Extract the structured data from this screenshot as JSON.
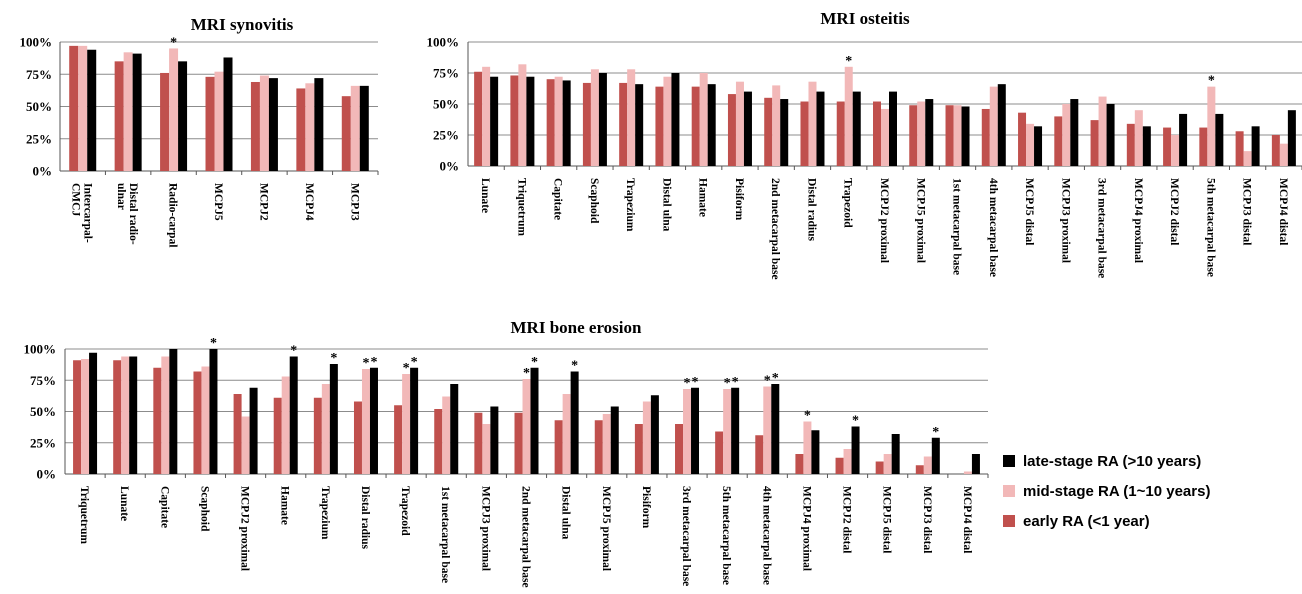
{
  "colors": {
    "early": "#c0504d",
    "mid": "#f2b8b8",
    "late": "#000000"
  },
  "legend": [
    {
      "key": "late",
      "label": "late-stage RA (>10 years)"
    },
    {
      "key": "mid",
      "label": "mid-stage RA (1~10 years)"
    },
    {
      "key": "early",
      "label": "early RA (<1 year)"
    }
  ],
  "chart_data": [
    {
      "type": "bar",
      "title": "MRI synovitis",
      "ylim": [
        0,
        100
      ],
      "yticks": [
        "0%",
        "25%",
        "50%",
        "75%",
        "100%"
      ],
      "grid": true,
      "categories": [
        "Intercarpal-CMCJ",
        "Distal radio-ulnar",
        "Radio-carpal",
        "MCPJ5",
        "MCPJ2",
        "MCPJ4",
        "MCPJ3"
      ],
      "category_lines": [
        [
          "Intercarpal-",
          "CMCJ"
        ],
        [
          "Distal radio-",
          "ulnar"
        ],
        [
          "Radio-carpal"
        ],
        [
          "MCPJ5"
        ],
        [
          "MCPJ2"
        ],
        [
          "MCPJ4"
        ],
        [
          "MCPJ3"
        ]
      ],
      "series": [
        {
          "key": "early",
          "values": [
            97,
            85,
            76,
            73,
            69,
            64,
            58
          ]
        },
        {
          "key": "mid",
          "values": [
            97,
            92,
            95,
            77,
            74,
            68,
            66
          ]
        },
        {
          "key": "late",
          "values": [
            94,
            91,
            85,
            88,
            72,
            72,
            66
          ]
        }
      ],
      "annotations": [
        {
          "index": 2,
          "series": "mid",
          "text": "*"
        }
      ]
    },
    {
      "type": "bar",
      "title": "MRI osteitis",
      "ylim": [
        0,
        100
      ],
      "yticks": [
        "0%",
        "25%",
        "50%",
        "75%",
        "100%"
      ],
      "grid": true,
      "categories": [
        "Lunate",
        "Triquetrum",
        "Capitate",
        "Scaphoid",
        "Trapezium",
        "Distal ulna",
        "Hamate",
        "Pisiform",
        "2nd metacarpal base",
        "Distal radius",
        "Trapezoid",
        "MCPJ2 proximal",
        "MCPJ5 proximal",
        "1st metacarpal base",
        "4th metacarpal base",
        "MCPJ5 distal",
        "MCPJ3 proximal",
        "3rd metacarpal base",
        "MCPJ4 proximal",
        "MCPJ2 distal",
        "5th metacarpal base",
        "MCPJ3 distal",
        "MCPJ4 distal"
      ],
      "series": [
        {
          "key": "early",
          "values": [
            76,
            73,
            70,
            67,
            67,
            64,
            64,
            58,
            55,
            52,
            52,
            52,
            49,
            49,
            46,
            43,
            40,
            37,
            34,
            31,
            31,
            28,
            25
          ]
        },
        {
          "key": "mid",
          "values": [
            80,
            82,
            72,
            78,
            78,
            72,
            75,
            68,
            65,
            68,
            80,
            46,
            52,
            49,
            64,
            34,
            50,
            56,
            45,
            25,
            64,
            12,
            18
          ]
        },
        {
          "key": "late",
          "values": [
            72,
            72,
            69,
            75,
            66,
            75,
            66,
            60,
            54,
            60,
            60,
            60,
            54,
            48,
            66,
            32,
            54,
            50,
            32,
            42,
            42,
            32,
            45
          ]
        }
      ],
      "annotations": [
        {
          "index": 10,
          "series": "mid",
          "text": "*"
        },
        {
          "index": 20,
          "series": "mid",
          "text": "*"
        }
      ]
    },
    {
      "type": "bar",
      "title": "MRI bone erosion",
      "ylim": [
        0,
        100
      ],
      "yticks": [
        "0%",
        "25%",
        "50%",
        "75%",
        "100%"
      ],
      "grid": true,
      "categories": [
        "Triquetrum",
        "Lunate",
        "Capitate",
        "Scaphoid",
        "MCPJ2 proximal",
        "Hamate",
        "Trapezium",
        "Distal radius",
        "Trapezoid",
        "1st metacarpal base",
        "MCPJ3 proximal",
        "2nd metacarpal base",
        "Distal ulna",
        "MCPJ5 proximal",
        "Pisiform",
        "3rd metacarpal base",
        "5th metacarpal base",
        "4th metacarpal base",
        "MCPJ4 proximal",
        "MCPJ2 distal",
        "MCPJ5 distal",
        "MCPJ3 distal",
        "MCPJ4 distal"
      ],
      "series": [
        {
          "key": "early",
          "values": [
            91,
            91,
            85,
            82,
            64,
            61,
            61,
            58,
            55,
            52,
            49,
            49,
            43,
            43,
            40,
            40,
            34,
            31,
            16,
            13,
            10,
            7,
            0
          ]
        },
        {
          "key": "mid",
          "values": [
            92,
            94,
            94,
            86,
            46,
            78,
            72,
            84,
            80,
            62,
            40,
            76,
            64,
            48,
            58,
            68,
            68,
            70,
            42,
            20,
            16,
            14,
            2
          ]
        },
        {
          "key": "late",
          "values": [
            97,
            94,
            100,
            100,
            69,
            94,
            88,
            85,
            85,
            72,
            54,
            85,
            82,
            54,
            63,
            69,
            69,
            72,
            35,
            38,
            32,
            29,
            16
          ]
        }
      ],
      "annotations": [
        {
          "index": 3,
          "series": "late",
          "text": "*"
        },
        {
          "index": 5,
          "series": "late",
          "text": "*"
        },
        {
          "index": 6,
          "series": "late",
          "text": "*"
        },
        {
          "index": 7,
          "series": "mid",
          "text": "*"
        },
        {
          "index": 7,
          "series": "late",
          "text": "*"
        },
        {
          "index": 8,
          "series": "mid",
          "text": "*"
        },
        {
          "index": 8,
          "series": "late",
          "text": "*"
        },
        {
          "index": 11,
          "series": "mid",
          "text": "*"
        },
        {
          "index": 11,
          "series": "late",
          "text": "*"
        },
        {
          "index": 12,
          "series": "late",
          "text": "*"
        },
        {
          "index": 15,
          "series": "mid",
          "text": "*"
        },
        {
          "index": 15,
          "series": "late",
          "text": "*"
        },
        {
          "index": 16,
          "series": "mid",
          "text": "*"
        },
        {
          "index": 16,
          "series": "late",
          "text": "*"
        },
        {
          "index": 17,
          "series": "mid",
          "text": "*"
        },
        {
          "index": 17,
          "series": "late",
          "text": "*"
        },
        {
          "index": 18,
          "series": "mid",
          "text": "*"
        },
        {
          "index": 19,
          "series": "late",
          "text": "*"
        },
        {
          "index": 21,
          "series": "late",
          "text": "*"
        }
      ]
    }
  ]
}
